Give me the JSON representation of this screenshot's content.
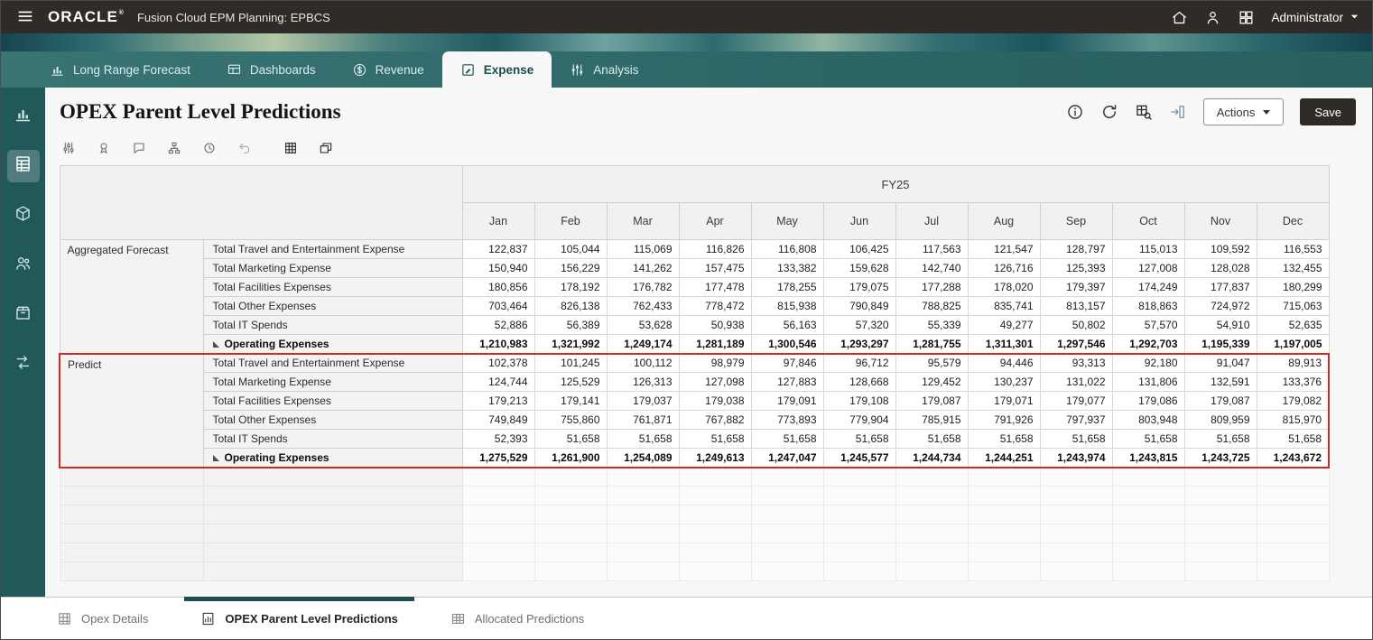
{
  "topbar": {
    "brand": "ORACLE",
    "brand_mark": "®",
    "product": "Fusion Cloud EPM Planning:  EPBCS",
    "user": "Administrator"
  },
  "nav": {
    "tabs": [
      {
        "label": "Long Range Forecast",
        "icon": "bar-chart-icon",
        "active": false
      },
      {
        "label": "Dashboards",
        "icon": "dashboard-icon",
        "active": false
      },
      {
        "label": "Revenue",
        "icon": "revenue-icon",
        "active": false
      },
      {
        "label": "Expense",
        "icon": "expense-icon",
        "active": true
      },
      {
        "label": "Analysis",
        "icon": "analysis-icon",
        "active": false
      }
    ]
  },
  "sidebar": {
    "items": [
      {
        "icon": "analytics-icon",
        "active": false
      },
      {
        "icon": "forms-icon",
        "active": true
      },
      {
        "icon": "cube-icon",
        "active": false
      },
      {
        "icon": "users-icon",
        "active": false
      },
      {
        "icon": "package-icon",
        "active": false
      },
      {
        "icon": "workflow-icon",
        "active": false
      }
    ]
  },
  "page": {
    "title": "OPEX Parent Level Predictions",
    "actions_label": "Actions",
    "save_label": "Save"
  },
  "toolbar": {
    "icons": [
      {
        "name": "adjust-columns-icon",
        "disabled": false,
        "emphasis": false
      },
      {
        "name": "format-icon",
        "disabled": false,
        "emphasis": false
      },
      {
        "name": "comments-icon",
        "disabled": false,
        "emphasis": false
      },
      {
        "name": "business-rules-icon",
        "disabled": false,
        "emphasis": false
      },
      {
        "name": "history-icon",
        "disabled": false,
        "emphasis": false
      },
      {
        "name": "undo-icon",
        "disabled": true,
        "emphasis": false
      },
      {
        "name": "grid-display-icon",
        "disabled": false,
        "emphasis": true
      },
      {
        "name": "detach-icon",
        "disabled": false,
        "emphasis": true
      }
    ]
  },
  "grid": {
    "year_header": "FY25",
    "months": [
      "Jan",
      "Feb",
      "Mar",
      "Apr",
      "May",
      "Jun",
      "Jul",
      "Aug",
      "Sep",
      "Oct",
      "Nov",
      "Dec"
    ],
    "sections": [
      {
        "name": "Aggregated Forecast",
        "highlight": false,
        "rows": [
          {
            "label": "Total Travel and Entertainment Expense",
            "total": false,
            "values": [
              "122,837",
              "105,044",
              "115,069",
              "116,826",
              "116,808",
              "106,425",
              "117,563",
              "121,547",
              "128,797",
              "115,013",
              "109,592",
              "116,553"
            ]
          },
          {
            "label": "Total Marketing Expense",
            "total": false,
            "values": [
              "150,940",
              "156,229",
              "141,262",
              "157,475",
              "133,382",
              "159,628",
              "142,740",
              "126,716",
              "125,393",
              "127,008",
              "128,028",
              "132,455"
            ]
          },
          {
            "label": "Total Facilities Expenses",
            "total": false,
            "values": [
              "180,856",
              "178,192",
              "176,782",
              "177,478",
              "178,255",
              "179,075",
              "177,288",
              "178,020",
              "179,397",
              "174,249",
              "177,837",
              "180,299"
            ]
          },
          {
            "label": "Total Other Expenses",
            "total": false,
            "values": [
              "703,464",
              "826,138",
              "762,433",
              "778,472",
              "815,938",
              "790,849",
              "788,825",
              "835,741",
              "813,157",
              "818,863",
              "724,972",
              "715,063"
            ]
          },
          {
            "label": "Total IT Spends",
            "total": false,
            "values": [
              "52,886",
              "56,389",
              "53,628",
              "50,938",
              "56,163",
              "57,320",
              "55,339",
              "49,277",
              "50,802",
              "57,570",
              "54,910",
              "52,635"
            ]
          },
          {
            "label": "Operating Expenses",
            "total": true,
            "values": [
              "1,210,983",
              "1,321,992",
              "1,249,174",
              "1,281,189",
              "1,300,546",
              "1,293,297",
              "1,281,755",
              "1,311,301",
              "1,297,546",
              "1,292,703",
              "1,195,339",
              "1,197,005"
            ]
          }
        ]
      },
      {
        "name": "Predict",
        "highlight": true,
        "rows": [
          {
            "label": "Total Travel and Entertainment Expense",
            "total": false,
            "values": [
              "102,378",
              "101,245",
              "100,112",
              "98,979",
              "97,846",
              "96,712",
              "95,579",
              "94,446",
              "93,313",
              "92,180",
              "91,047",
              "89,913"
            ]
          },
          {
            "label": "Total Marketing Expense",
            "total": false,
            "values": [
              "124,744",
              "125,529",
              "126,313",
              "127,098",
              "127,883",
              "128,668",
              "129,452",
              "130,237",
              "131,022",
              "131,806",
              "132,591",
              "133,376"
            ]
          },
          {
            "label": "Total Facilities Expenses",
            "total": false,
            "values": [
              "179,213",
              "179,141",
              "179,037",
              "179,038",
              "179,091",
              "179,108",
              "179,087",
              "179,071",
              "179,077",
              "179,086",
              "179,087",
              "179,082"
            ]
          },
          {
            "label": "Total Other Expenses",
            "total": false,
            "values": [
              "749,849",
              "755,860",
              "761,871",
              "767,882",
              "773,893",
              "779,904",
              "785,915",
              "791,926",
              "797,937",
              "803,948",
              "809,959",
              "815,970"
            ]
          },
          {
            "label": "Total IT Spends",
            "total": false,
            "values": [
              "52,393",
              "51,658",
              "51,658",
              "51,658",
              "51,658",
              "51,658",
              "51,658",
              "51,658",
              "51,658",
              "51,658",
              "51,658",
              "51,658"
            ]
          },
          {
            "label": "Operating Expenses",
            "total": true,
            "values": [
              "1,275,529",
              "1,261,900",
              "1,254,089",
              "1,249,613",
              "1,247,047",
              "1,245,577",
              "1,244,734",
              "1,244,251",
              "1,243,974",
              "1,243,815",
              "1,243,725",
              "1,243,672"
            ]
          }
        ]
      }
    ]
  },
  "bottom_tabs": [
    {
      "label": "Opex Details",
      "icon": "grid-icon",
      "active": false
    },
    {
      "label": "OPEX Parent Level Predictions",
      "icon": "doc-chart-icon",
      "active": true
    },
    {
      "label": "Allocated Predictions",
      "icon": "table-icon",
      "active": false
    }
  ],
  "colors": {
    "topbar": "#2e2b28",
    "nav_teal": "#2f6d6e",
    "sidebar_teal": "#215859",
    "highlight_red": "#cf2b24",
    "active_tab_bar": "#1d4e50"
  }
}
